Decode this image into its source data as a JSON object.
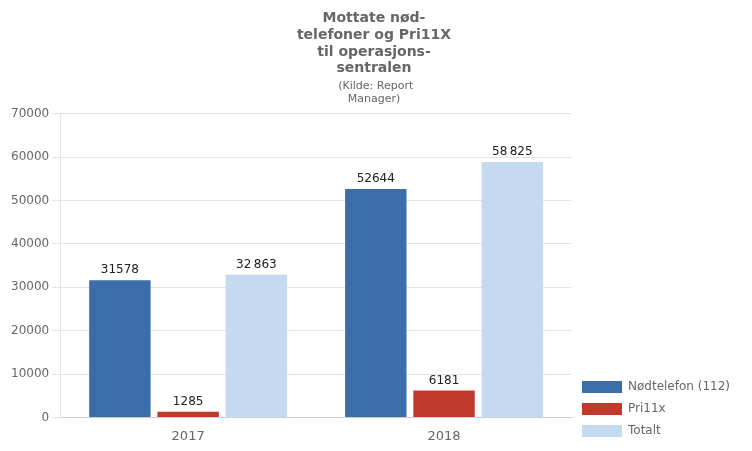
{
  "chart_data": {
    "type": "bar",
    "title": "Mottate nød-\ntelefoner og Pri11X\ntil operasjons-\nsentralen",
    "subtitle": " (Kilde: Report\nManager)",
    "categories": [
      "2017",
      "2018"
    ],
    "series": [
      {
        "name": "Nødtelefon (112)",
        "color": "#3B6DAA",
        "values": [
          31578,
          52644
        ]
      },
      {
        "name": "Pri11x",
        "color": "#C0392B",
        "values": [
          1285,
          6181
        ]
      },
      {
        "name": "Totalt",
        "color": "#C5D9F1",
        "values": [
          32863,
          58825
        ],
        "value_labels": [
          "32 863",
          "58 825"
        ]
      }
    ],
    "ylim": [
      0,
      70000
    ],
    "yticks": [
      0,
      10000,
      20000,
      30000,
      40000,
      50000,
      60000,
      70000
    ],
    "grid": true,
    "legend": "lower right",
    "data_labels": true
  }
}
